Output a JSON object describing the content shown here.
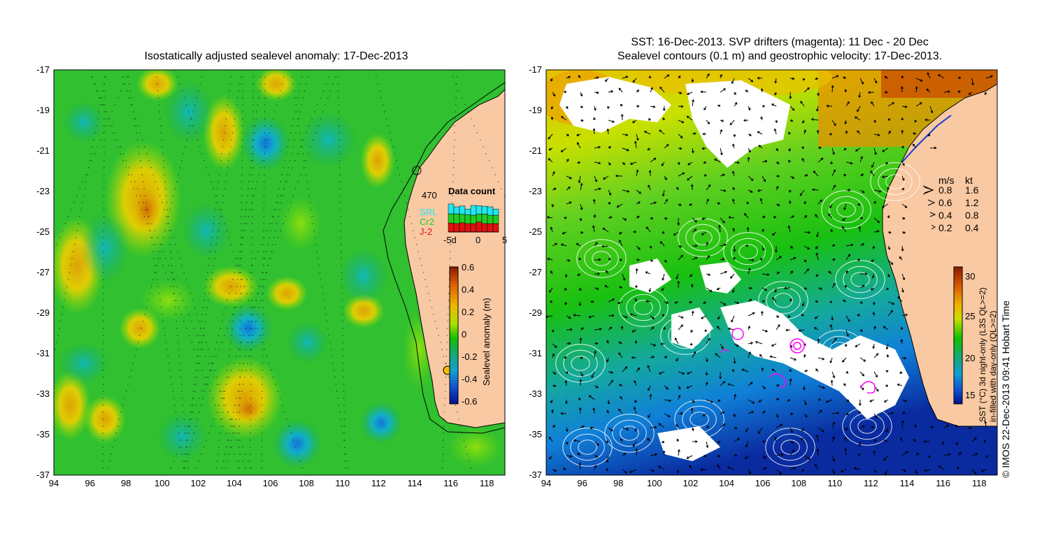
{
  "left_panel": {
    "title": "Isostatically adjusted sealevel anomaly: 17-Dec-2013",
    "y_ticks": [
      "-17",
      "-19",
      "-21",
      "-23",
      "-25",
      "-27",
      "-29",
      "-31",
      "-33",
      "-35",
      "-37"
    ],
    "x_ticks": [
      "94",
      "96",
      "98",
      "100",
      "102",
      "104",
      "106",
      "108",
      "110",
      "112",
      "114",
      "116",
      "118"
    ],
    "data_count": {
      "number": "470",
      "title": "Data count",
      "legend": [
        {
          "label": "SRL",
          "color": "#22e6f0"
        },
        {
          "label": "Cr2",
          "color": "#22cc22"
        },
        {
          "label": "J-2",
          "color": "#e01010"
        }
      ],
      "x_labels": [
        "-5d",
        "0",
        "5"
      ],
      "bars": [
        {
          "SRL": 0.35,
          "Cr2": 0.33,
          "J-2": 0.32
        },
        {
          "SRL": 0.25,
          "Cr2": 0.35,
          "J-2": 0.3
        },
        {
          "SRL": 0.3,
          "Cr2": 0.3,
          "J-2": 0.33
        },
        {
          "SRL": 0.2,
          "Cr2": 0.32,
          "J-2": 0.3
        },
        {
          "SRL": 0.35,
          "Cr2": 0.3,
          "J-2": 0.3
        },
        {
          "SRL": 0.3,
          "Cr2": 0.28,
          "J-2": 0.36
        },
        {
          "SRL": 0.28,
          "Cr2": 0.34,
          "J-2": 0.3
        },
        {
          "SRL": 0.3,
          "Cr2": 0.3,
          "J-2": 0.3
        },
        {
          "SRL": 0.22,
          "Cr2": 0.3,
          "J-2": 0.3
        }
      ]
    },
    "colorbar": {
      "label": "Sealevel anomaly (m)",
      "ticks": [
        "0.6",
        "0.4",
        "0.2",
        "0",
        "-0.2",
        "-0.4",
        "-0.6"
      ],
      "colors": [
        "#8b1a00",
        "#d85a00",
        "#f0b400",
        "#a8e000",
        "#10c000",
        "#14a878",
        "#10a0d0",
        "#1050d0",
        "#00108a"
      ]
    }
  },
  "right_panel": {
    "title_line1": "SST: 16-Dec-2013. SVP drifters (magenta): 11 Dec - 20 Dec",
    "title_line2": "Sealevel contours (0.1 m) and geostrophic velocity: 17-Dec-2013.",
    "y_ticks": [
      "-17",
      "-19",
      "-21",
      "-23",
      "-25",
      "-27",
      "-29",
      "-31",
      "-33",
      "-35",
      "-37"
    ],
    "x_ticks": [
      "94",
      "96",
      "98",
      "100",
      "102",
      "104",
      "106",
      "108",
      "110",
      "112",
      "114",
      "116",
      "118"
    ],
    "velocity_legend": {
      "header_ms": "m/s",
      "header_kt": "kt",
      "rows": [
        {
          "ms": "0.8",
          "kt": "1.6"
        },
        {
          "ms": "0.6",
          "kt": "1.2"
        },
        {
          "ms": "0.4",
          "kt": "0.8"
        },
        {
          "ms": "0.2",
          "kt": "0.4"
        }
      ]
    },
    "colorbar": {
      "label_line1": "SST (°C) 3d night-only (L3S QL>=2)",
      "label_line2": "in-filled with day-only (QL>=2)",
      "ticks": [
        "30",
        "25",
        "20",
        "15"
      ],
      "colors": [
        "#8b1a00",
        "#d85a00",
        "#f0b400",
        "#c8e000",
        "#10c000",
        "#14a878",
        "#10a0d0",
        "#1050d0",
        "#00108a"
      ]
    },
    "credit": "© IMOS 22-Dec-2013 09:41 Hobart Time"
  },
  "colors": {
    "land": "#f9c9a3",
    "sst_white": "#ffffff",
    "drifter": "#ff00ff"
  }
}
